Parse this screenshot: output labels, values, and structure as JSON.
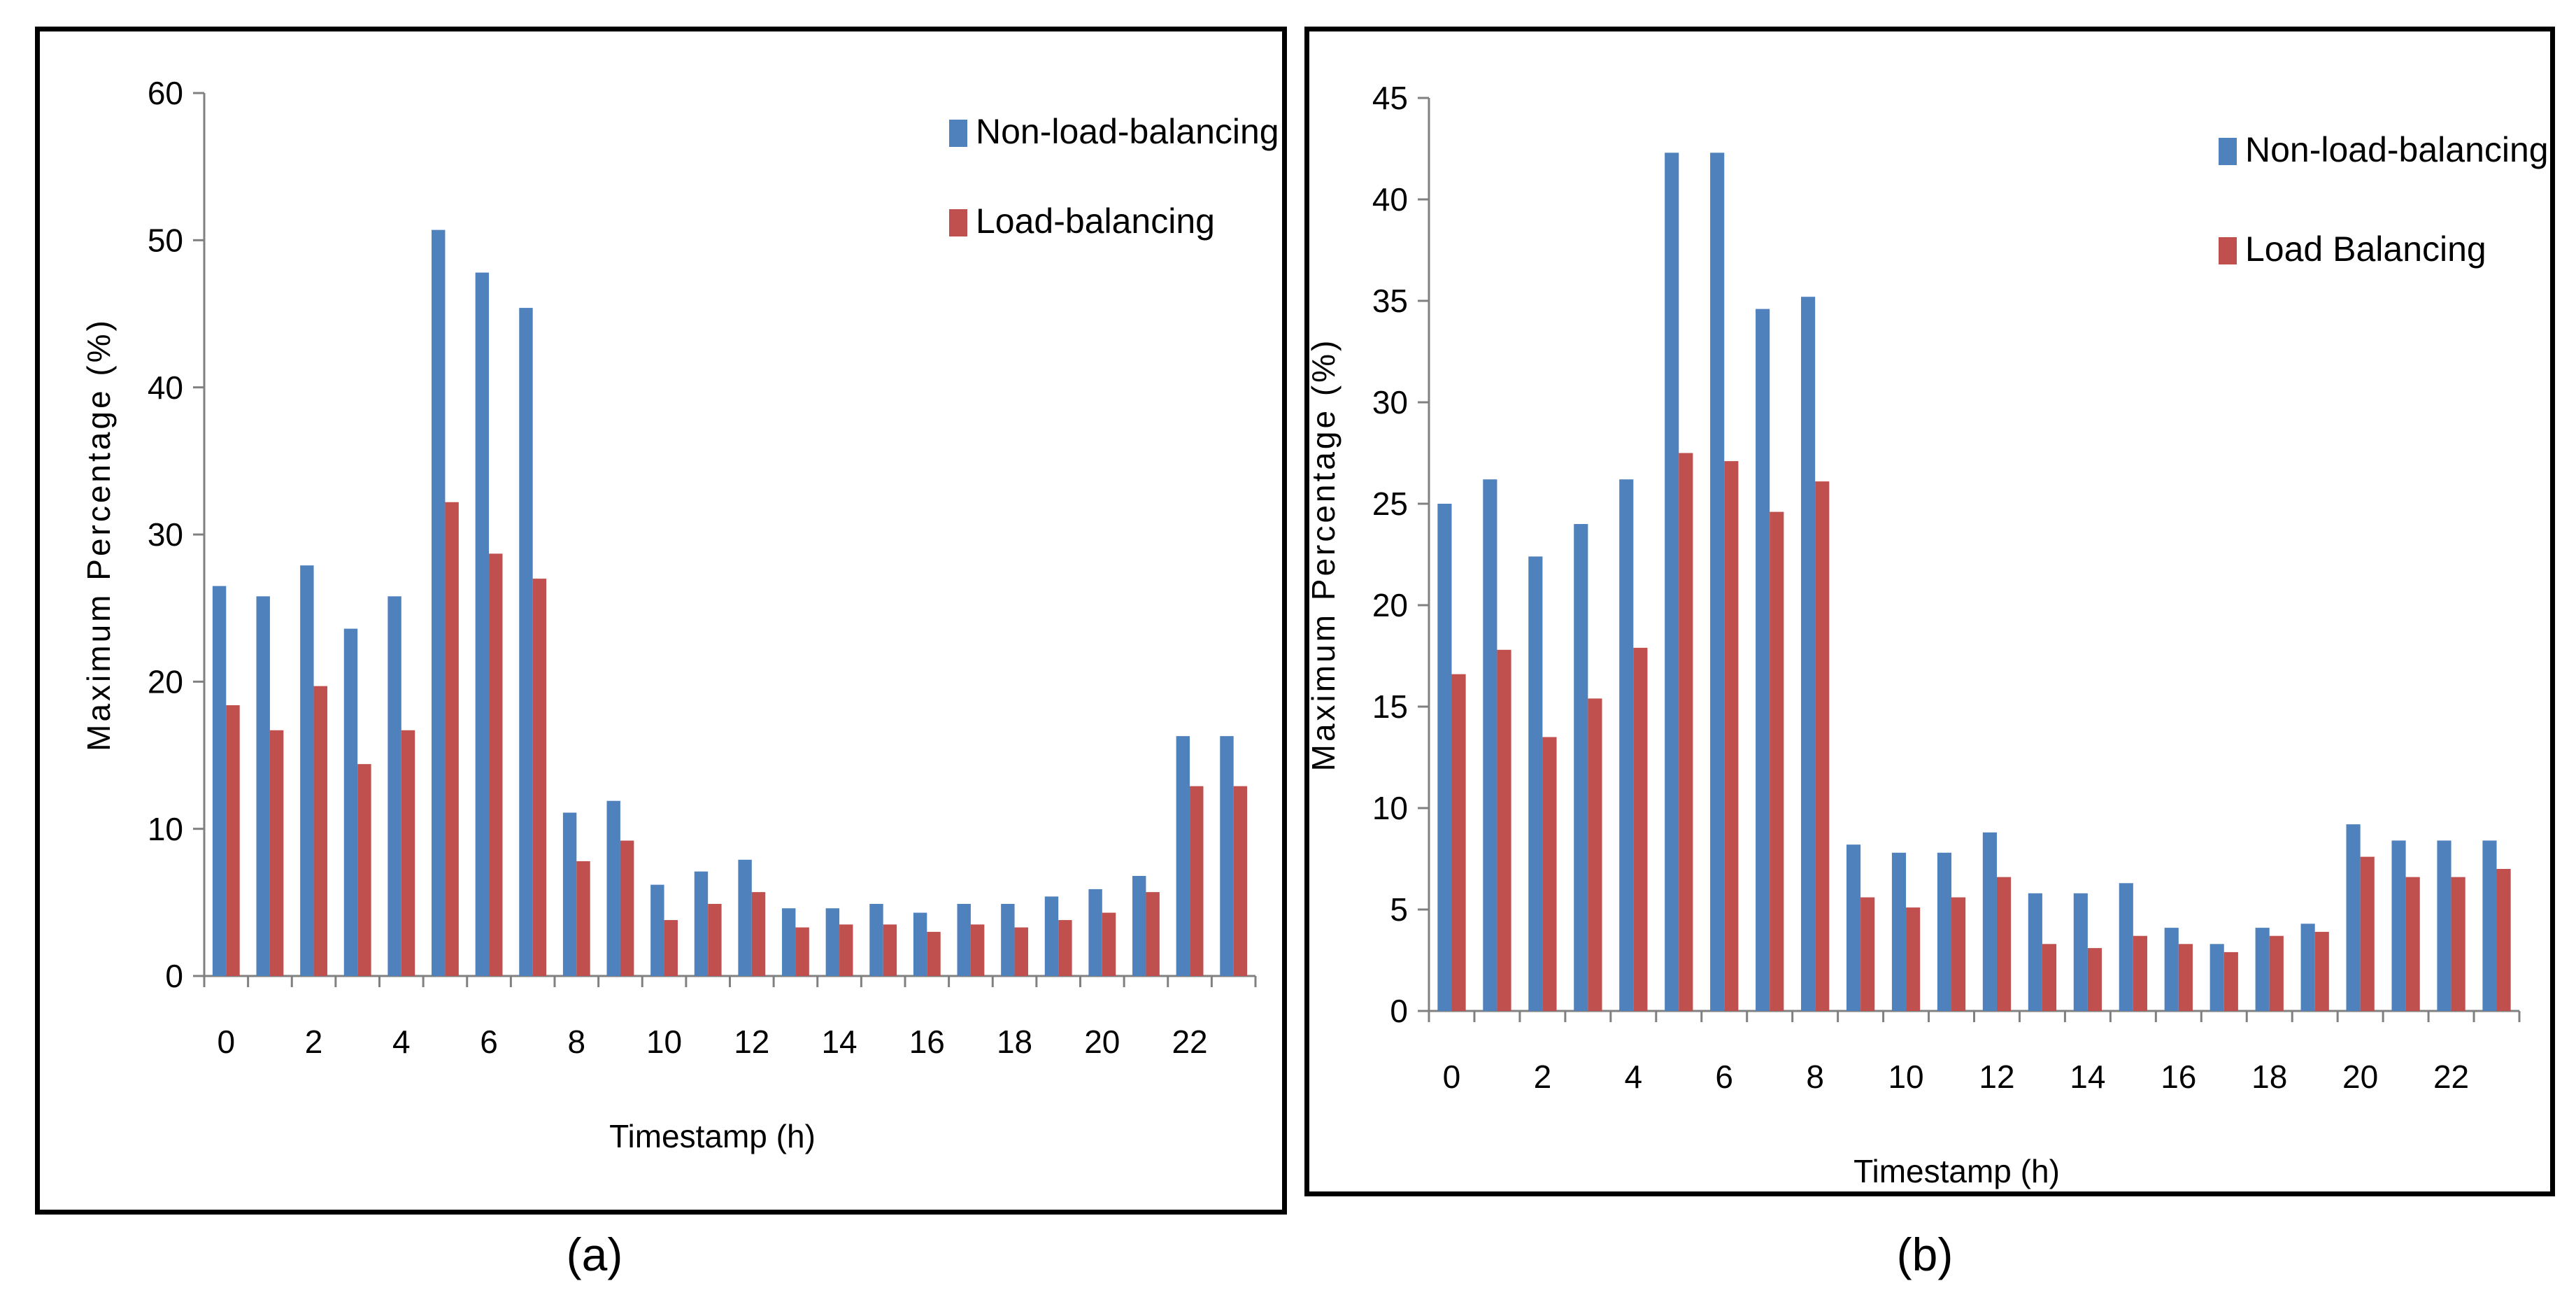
{
  "chart_data": [
    {
      "type": "bar",
      "panel_label": "(a)",
      "xlabel": "Timestamp (h)",
      "ylabel": "Maximum Percentage (%)",
      "ylim": [
        0,
        60
      ],
      "yticks": [
        0,
        10,
        20,
        30,
        40,
        50,
        60
      ],
      "categories": [
        0,
        1,
        2,
        3,
        4,
        5,
        6,
        7,
        8,
        9,
        10,
        11,
        12,
        13,
        14,
        15,
        16,
        17,
        18,
        19,
        20,
        21,
        22,
        23
      ],
      "xtick_labels": [
        "0",
        "2",
        "4",
        "6",
        "8",
        "10",
        "12",
        "14",
        "16",
        "18",
        "20",
        "22"
      ],
      "legend_position": "top-right",
      "series": [
        {
          "name": "Non-load-balancing",
          "color": "#4F81BD",
          "values": [
            26.5,
            25.8,
            27.9,
            23.6,
            25.8,
            50.7,
            47.8,
            45.4,
            11.1,
            11.9,
            6.2,
            7.1,
            7.9,
            4.6,
            4.6,
            4.9,
            4.3,
            4.9,
            4.9,
            5.4,
            5.9,
            6.8,
            16.3,
            16.3
          ]
        },
        {
          "name": "Load-balancing",
          "color": "#C0504D",
          "values": [
            18.4,
            16.7,
            19.7,
            14.4,
            16.7,
            32.2,
            28.7,
            27.0,
            7.8,
            9.2,
            3.8,
            4.9,
            5.7,
            3.3,
            3.5,
            3.5,
            3.0,
            3.5,
            3.3,
            3.8,
            4.3,
            5.7,
            12.9,
            12.9
          ]
        }
      ]
    },
    {
      "type": "bar",
      "panel_label": "(b)",
      "xlabel": "Timestamp (h)",
      "ylabel": "Maximum Percentage (%)",
      "ylim": [
        0,
        45
      ],
      "yticks": [
        0,
        5,
        10,
        15,
        20,
        25,
        30,
        35,
        40,
        45
      ],
      "categories": [
        0,
        1,
        2,
        3,
        4,
        5,
        6,
        7,
        8,
        9,
        10,
        11,
        12,
        13,
        14,
        15,
        16,
        17,
        18,
        19,
        20,
        21,
        22,
        23
      ],
      "xtick_labels": [
        "0",
        "2",
        "4",
        "6",
        "8",
        "10",
        "12",
        "14",
        "16",
        "18",
        "20",
        "22"
      ],
      "legend_position": "top-right",
      "series": [
        {
          "name": "Non-load-balancing",
          "color": "#4F81BD",
          "values": [
            25.0,
            26.2,
            22.4,
            24.0,
            26.2,
            42.3,
            42.3,
            34.6,
            35.2,
            8.2,
            7.8,
            7.8,
            8.8,
            5.8,
            5.8,
            6.3,
            4.1,
            3.3,
            4.1,
            4.3,
            9.2,
            8.4,
            8.4,
            8.4
          ]
        },
        {
          "name": "Load Balancing",
          "color": "#C0504D",
          "values": [
            16.6,
            17.8,
            13.5,
            15.4,
            17.9,
            27.5,
            27.1,
            24.6,
            26.1,
            5.6,
            5.1,
            5.6,
            6.6,
            3.3,
            3.1,
            3.7,
            3.3,
            2.9,
            3.7,
            3.9,
            7.6,
            6.6,
            6.6,
            7.0
          ]
        }
      ]
    }
  ]
}
